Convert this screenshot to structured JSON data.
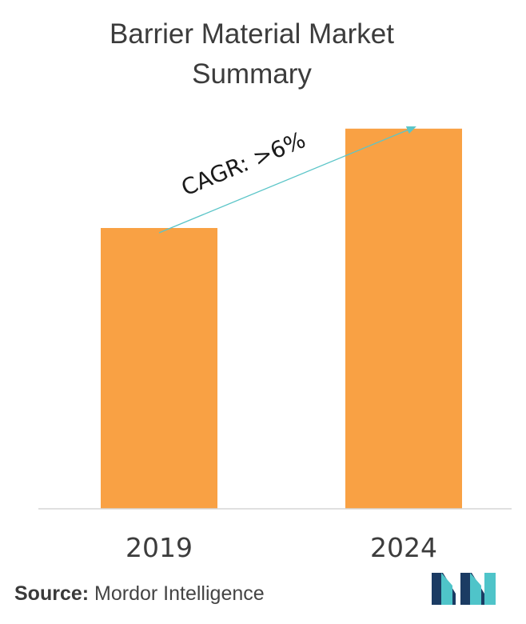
{
  "chart_data": {
    "type": "bar",
    "title_lines": [
      "Barrier Material Market",
      "Summary"
    ],
    "categories": [
      "2019",
      "2024"
    ],
    "values": [
      0.65,
      0.88
    ],
    "ylim": [
      0,
      1
    ],
    "annotation": "CAGR: >6%",
    "grid": false,
    "legend": "none",
    "bar_color": "#f9a144",
    "arrow_color": "#5bc5c8",
    "baseline_color": "#d5d5d5"
  },
  "footer": {
    "source_label": "Source:",
    "source_text": "Mordor Intelligence",
    "logo_icon": "mordor-intelligence-logo-icon",
    "logo_colors": [
      "#1b3b63",
      "#4fc4c9"
    ]
  }
}
